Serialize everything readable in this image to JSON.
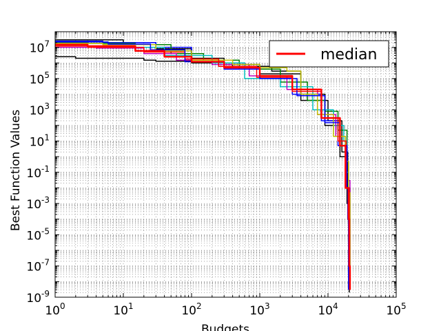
{
  "chart_data": {
    "type": "line",
    "title": "",
    "xlabel": "Budgets",
    "ylabel": "Best Function Values",
    "xscale": "log",
    "yscale": "log",
    "xlim": [
      1,
      100000
    ],
    "ylim": [
      1e-09,
      100000000.0
    ],
    "grid": true,
    "legend_position": "top-right",
    "x_ticks": [
      {
        "value": 1,
        "base": "10",
        "exp": "0"
      },
      {
        "value": 10,
        "base": "10",
        "exp": "1"
      },
      {
        "value": 100,
        "base": "10",
        "exp": "2"
      },
      {
        "value": 1000,
        "base": "10",
        "exp": "3"
      },
      {
        "value": 10000,
        "base": "10",
        "exp": "4"
      },
      {
        "value": 100000,
        "base": "10",
        "exp": "5"
      }
    ],
    "y_ticks": [
      {
        "value": 10000000.0,
        "base": "10",
        "exp": "7"
      },
      {
        "value": 100000.0,
        "base": "10",
        "exp": "5"
      },
      {
        "value": 1000.0,
        "base": "10",
        "exp": "3"
      },
      {
        "value": 10.0,
        "base": "10",
        "exp": "1"
      },
      {
        "value": 0.1,
        "base": "10",
        "exp": "-1"
      },
      {
        "value": 0.001,
        "base": "10",
        "exp": "-3"
      },
      {
        "value": 1e-05,
        "base": "10",
        "exp": "-5"
      },
      {
        "value": 1e-07,
        "base": "10",
        "exp": "-7"
      },
      {
        "value": 1e-09,
        "base": "10",
        "exp": "-9"
      }
    ],
    "series": [
      {
        "name": "median",
        "legend": true,
        "color": "#ff0000",
        "width": 2.5,
        "x": [
          1,
          3,
          15,
          40,
          100,
          300,
          1000,
          3000,
          8000,
          15000,
          18000,
          20000,
          20500,
          21000
        ],
        "y": [
          15000000.0,
          12000000.0,
          6000000.0,
          2500000.0,
          1200000.0,
          500000.0,
          150000.0,
          20000.0,
          300,
          5,
          0.01,
          0.0001,
          1e-07,
          3e-09
        ]
      },
      {
        "name": "",
        "legend": false,
        "color": "#000000",
        "width": 1.5,
        "x": [
          1,
          2,
          15,
          20,
          30,
          100,
          400,
          1500,
          4000,
          9000,
          15000,
          19000,
          19500,
          20000
        ],
        "y": [
          2500000.0,
          2000000.0,
          2000000.0,
          1500000.0,
          1300000.0,
          1000000.0,
          600000.0,
          300000.0,
          10000.0,
          100,
          1,
          0.001,
          0.0001,
          0.0001
        ]
      },
      {
        "name": "",
        "legend": false,
        "color": "#000000",
        "width": 1.5,
        "x": [
          1,
          4,
          10,
          30,
          100,
          300,
          1000,
          4000,
          10000,
          16000,
          19500,
          20500
        ],
        "y": [
          30000000.0,
          30000000.0,
          20000000.0,
          8000000.0,
          2000000.0,
          800000.0,
          200000.0,
          4000.0,
          200,
          2,
          0.01,
          2e-09
        ]
      },
      {
        "name": "",
        "legend": false,
        "color": "#0000ff",
        "width": 1.5,
        "x": [
          1,
          5,
          30,
          100,
          300,
          1000,
          3000,
          8000,
          14000,
          18000,
          19500,
          20000
        ],
        "y": [
          25000000.0,
          20000000.0,
          10000000.0,
          1500000.0,
          500000.0,
          100000.0,
          10000.0,
          200,
          5,
          0.01,
          0.0001,
          3e-09
        ]
      },
      {
        "name": "",
        "legend": false,
        "color": "#008000",
        "width": 1.5,
        "x": [
          1,
          3,
          15,
          50,
          150,
          500,
          2000,
          5000,
          9000,
          14000,
          19000,
          20000,
          21000
        ],
        "y": [
          20000000.0,
          18000000.0,
          15000000.0,
          4000000.0,
          1500000.0,
          400000.0,
          60000.0,
          4000.0,
          800,
          50,
          0.5,
          0.01,
          1e-08
        ]
      },
      {
        "name": "",
        "legend": false,
        "color": "#00bfbf",
        "width": 1.5,
        "x": [
          1,
          3,
          10,
          40,
          200,
          600,
          2000,
          6000,
          12000,
          17000,
          19000,
          20000
        ],
        "y": [
          15000000.0,
          12000000.0,
          10000000.0,
          3000000.0,
          1000000.0,
          100000.0,
          30000.0,
          1000.0,
          100,
          10,
          0.1,
          1e-08
        ]
      },
      {
        "name": "",
        "legend": false,
        "color": "#bf00bf",
        "width": 1.5,
        "x": [
          1,
          4,
          20,
          60,
          200,
          700,
          2500,
          7000,
          13000,
          18000,
          20000,
          21000
        ],
        "y": [
          10000000.0,
          9000000.0,
          4000000.0,
          1500000.0,
          800000.0,
          150000.0,
          20000.0,
          500,
          20,
          0.5,
          0.03,
          1e-08
        ]
      },
      {
        "name": "",
        "legend": false,
        "color": "#bfbf00",
        "width": 1.5,
        "x": [
          1,
          5,
          30,
          100,
          400,
          1000,
          2500,
          4000,
          7000,
          12000,
          18000,
          20000,
          21000
        ],
        "y": [
          18000000.0,
          15000000.0,
          6000000.0,
          1500000.0,
          800000.0,
          500000.0,
          300000.0,
          10000.0,
          500,
          20,
          0.5,
          0.005,
          1e-08
        ]
      },
      {
        "name": "",
        "legend": false,
        "color": "#ff0000",
        "width": 1.5,
        "x": [
          1,
          3,
          20,
          80,
          250,
          900,
          3000,
          8000,
          14000,
          18500,
          20500
        ],
        "y": [
          12000000.0,
          10000000.0,
          5000000.0,
          1800000.0,
          600000.0,
          120000.0,
          15000.0,
          300,
          10,
          0.01,
          1e-08
        ]
      },
      {
        "name": "",
        "legend": false,
        "color": "#0000ff",
        "width": 1.5,
        "x": [
          1,
          6,
          25,
          80,
          300,
          1000,
          3500,
          9000,
          15000,
          19000,
          20000
        ],
        "y": [
          22000000.0,
          16000000.0,
          7000000.0,
          1200000.0,
          400000.0,
          100000.0,
          8000.0,
          150,
          5,
          0.01,
          1e-08
        ]
      }
    ]
  }
}
